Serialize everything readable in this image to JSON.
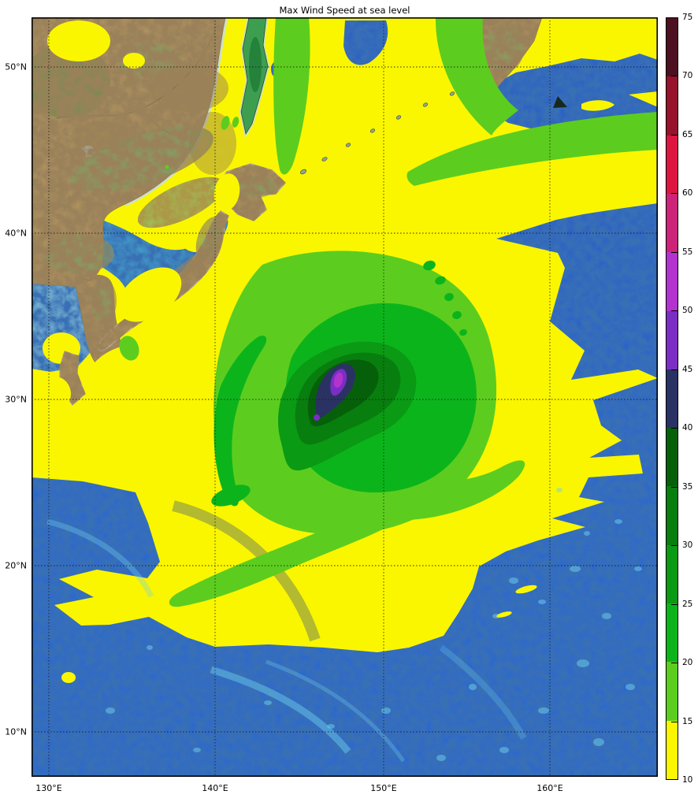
{
  "title": "Max Wind Speed at sea level",
  "axes": {
    "y_ticks": [
      "50°N",
      "40°N",
      "30°N",
      "20°N",
      "10°N"
    ],
    "x_ticks": [
      "130°E",
      "140°E",
      "150°E",
      "160°E"
    ]
  },
  "colorbar": {
    "min": 10,
    "max": 75,
    "tick_labels": [
      "10",
      "15",
      "20",
      "25",
      "30",
      "35",
      "40",
      "45",
      "50",
      "55",
      "60",
      "65",
      "70",
      "75"
    ],
    "levels": [
      {
        "range": "10-15",
        "color": "#FAF600"
      },
      {
        "range": "15-20",
        "color": "#5CCD1E"
      },
      {
        "range": "20-25",
        "color": "#0CB41C"
      },
      {
        "range": "25-30",
        "color": "#0A9A14"
      },
      {
        "range": "30-35",
        "color": "#087E0E"
      },
      {
        "range": "35-40",
        "color": "#066009"
      },
      {
        "range": "40-45",
        "color": "#2A3263"
      },
      {
        "range": "45-50",
        "color": "#7B2EC4"
      },
      {
        "range": "50-55",
        "color": "#B233CE"
      },
      {
        "range": "55-60",
        "color": "#CC2479"
      },
      {
        "range": "60-65",
        "color": "#DC1640"
      },
      {
        "range": "65-70",
        "color": "#97122B"
      },
      {
        "range": "70-75",
        "color": "#4D1021"
      }
    ]
  },
  "palette": {
    "ocean_deep": "#1D53CE",
    "ocean_mid": "#1E63DC",
    "ocean_dark": "#10309A",
    "ocean_seamount": "#6FD2EA",
    "sea_of_japan": "#4AB6D6",
    "shallow_cyan": "#93D9E9",
    "coastal_pale": "#C8DEE3",
    "land_tan": "#C6A369",
    "land_tan2": "#B08F58",
    "land_brown": "#8F6E46",
    "land_green": "#57B669",
    "land_forest": "#2E8F44",
    "lake_cyan": "#BFE8EE",
    "island_grey": "#8AA890",
    "grid_line": "#1A1A1A",
    "frame": "#000000"
  }
}
